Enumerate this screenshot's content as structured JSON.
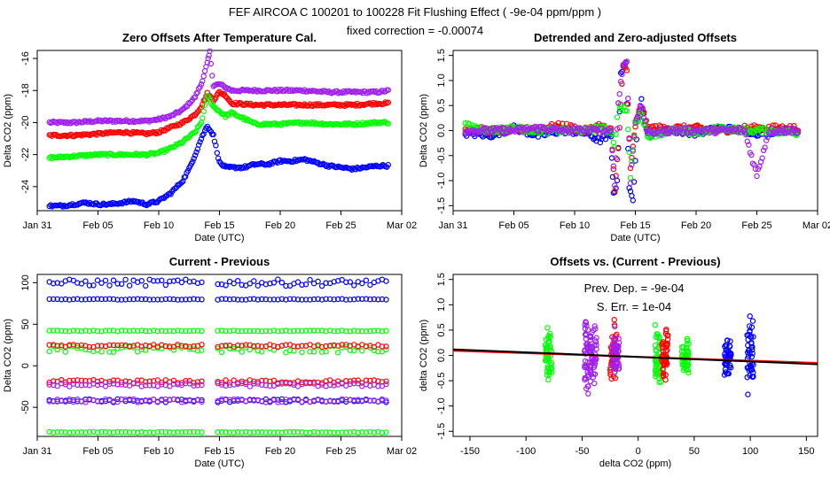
{
  "header": {
    "title": "FEF   AIRCOA C   100201 to 100228   Fit Flushing Effect ( -9e-04 ppm/ppm )",
    "subtitle": "fixed correction = -0.00074"
  },
  "colors": {
    "blue": "#0000ff",
    "red": "#ff0000",
    "green": "#00ff00",
    "purple": "#a020f0",
    "black": "#000000"
  },
  "chart_data": [
    {
      "id": "panel-zero-offsets",
      "type": "scatter",
      "title": "Zero Offsets After Temperature Cal.",
      "xlabel": "Date (UTC)",
      "ylabel": "Delta CO2 (ppm)",
      "xlim": [
        0,
        30
      ],
      "ylim": [
        -25.5,
        -15.5
      ],
      "xticks": [
        0,
        5,
        10,
        15,
        20,
        25,
        30
      ],
      "xticklabels": [
        "Jan 31",
        "Feb 05",
        "Feb 10",
        "Feb 15",
        "Feb 20",
        "Feb 25",
        "Mar 02"
      ],
      "yticks": [
        -24,
        -22,
        -20,
        -18,
        -16
      ],
      "yticklabels": [
        "-24",
        "-22",
        "-20",
        "-18",
        "-16"
      ],
      "series": [
        {
          "name": "purple",
          "color": "#a020f0",
          "x": [
            1,
            3,
            5,
            7,
            9,
            10,
            11,
            12,
            13,
            13.5,
            14,
            14.2,
            14.5,
            15,
            16,
            18,
            20,
            22,
            24,
            26,
            28,
            29
          ],
          "y": [
            -20,
            -20,
            -19.9,
            -19.9,
            -19.9,
            -19.8,
            -19.6,
            -19.2,
            -18.4,
            -17.6,
            -16.3,
            -15.6,
            -17.7,
            -17.6,
            -18.0,
            -18.0,
            -18.0,
            -18.0,
            -18.1,
            -18.1,
            -18.1,
            -18.0
          ]
        },
        {
          "name": "red",
          "color": "#ff0000",
          "x": [
            1,
            3,
            5,
            7,
            9,
            10,
            11,
            12,
            13,
            13.5,
            14,
            14.5,
            15,
            15.5,
            16,
            18,
            20,
            22,
            24,
            26,
            28,
            29
          ],
          "y": [
            -20.8,
            -20.8,
            -20.7,
            -20.6,
            -20.7,
            -20.6,
            -20.3,
            -20.0,
            -19.5,
            -19,
            -18.2,
            -18.6,
            -18.1,
            -18.3,
            -18.8,
            -18.9,
            -18.9,
            -18.9,
            -18.9,
            -18.9,
            -18.8,
            -18.8
          ]
        },
        {
          "name": "green",
          "color": "#00ff00",
          "x": [
            1,
            3,
            5,
            7,
            9,
            10,
            11,
            12,
            13,
            13.5,
            14,
            14.5,
            15,
            15.5,
            16,
            18,
            20,
            22,
            24,
            26,
            28,
            29
          ],
          "y": [
            -22.2,
            -22.1,
            -22.0,
            -22.0,
            -22.0,
            -21.9,
            -21.6,
            -21.2,
            -20.6,
            -20,
            -18.3,
            -19,
            -19.3,
            -19.6,
            -19.4,
            -20.1,
            -20.1,
            -20.0,
            -20.1,
            -20.1,
            -20.0,
            -20.0
          ]
        },
        {
          "name": "blue",
          "color": "#0000ff",
          "x": [
            1,
            2,
            3,
            4,
            5,
            6,
            7,
            8,
            9,
            10,
            11,
            12,
            12.5,
            13,
            13.5,
            14,
            14.5,
            15,
            15.5,
            16,
            17,
            18,
            19,
            20,
            21,
            22,
            23,
            24,
            25,
            26,
            27,
            28,
            29
          ],
          "y": [
            -25.2,
            -25.2,
            -25.1,
            -25.0,
            -25.1,
            -25.1,
            -25.0,
            -24.9,
            -25.1,
            -24.9,
            -24.4,
            -23.6,
            -22.9,
            -22.0,
            -21.0,
            -20.2,
            -20.8,
            -22.5,
            -22.8,
            -22.8,
            -22.8,
            -22.6,
            -22.6,
            -22.4,
            -22.4,
            -22.3,
            -22.5,
            -22.7,
            -22.8,
            -22.9,
            -22.8,
            -22.7,
            -22.7
          ]
        }
      ]
    },
    {
      "id": "panel-detrended",
      "type": "scatter",
      "title": "Detrended and Zero-adjusted Offsets",
      "xlabel": "Date (UTC)",
      "ylabel": "Delta CO2 (ppm)",
      "xlim": [
        0,
        30
      ],
      "ylim": [
        -1.6,
        1.6
      ],
      "xticks": [
        0,
        5,
        10,
        15,
        20,
        25,
        30
      ],
      "xticklabels": [
        "Jan 31",
        "Feb 05",
        "Feb 10",
        "Feb 15",
        "Feb 20",
        "Feb 25",
        "Mar 02"
      ],
      "yticks": [
        -1.5,
        -1.0,
        -0.5,
        0.0,
        0.5,
        1.0,
        1.5
      ],
      "yticklabels": [
        "-1.5",
        "-1.0",
        "-0.5",
        "0.0",
        "0.5",
        "1.0",
        "1.5"
      ],
      "series": [
        {
          "name": "blue",
          "color": "#0000ff",
          "x": [
            1,
            3,
            5,
            7,
            9,
            11,
            12,
            13,
            13.2,
            13.5,
            13.8,
            14.2,
            14.5,
            14.8,
            15.2,
            15.5,
            16,
            17,
            18,
            20,
            22,
            24,
            25,
            27,
            28.5
          ],
          "y": [
            -0.05,
            -0.1,
            0.05,
            -0.1,
            0,
            -0.05,
            -0.2,
            -0.1,
            -1.3,
            -1.0,
            1.1,
            1.4,
            -1.2,
            -1.4,
            0.3,
            0.6,
            -0.1,
            0,
            0,
            -0.05,
            0.05,
            0,
            -0.05,
            0,
            0
          ]
        },
        {
          "name": "red",
          "color": "#ff0000",
          "x": [
            1,
            3,
            5,
            7,
            9,
            11,
            12,
            13,
            13.3,
            13.6,
            14,
            14.3,
            14.6,
            15,
            15.5,
            16,
            18,
            20,
            22,
            24,
            26,
            28.5
          ],
          "y": [
            0.05,
            0,
            0,
            0.05,
            0.1,
            0,
            0.1,
            0,
            -1.2,
            -0.3,
            1.3,
            1.2,
            -0.8,
            0.1,
            0.5,
            0.05,
            0.05,
            0.05,
            0,
            0.05,
            0.05,
            0.05
          ]
        },
        {
          "name": "green",
          "color": "#00ff00",
          "x": [
            1,
            3,
            5,
            7,
            9,
            11,
            12,
            13,
            13.3,
            13.6,
            14.3,
            14.6,
            15,
            15.5,
            16,
            18,
            20,
            22,
            24,
            26,
            28.5
          ],
          "y": [
            0.1,
            0,
            0.05,
            0,
            0,
            0,
            0.05,
            0,
            -0.3,
            0.5,
            0.4,
            -0.9,
            0.15,
            0.35,
            -0.1,
            0,
            -0.05,
            0.05,
            0,
            0,
            -0.05
          ]
        },
        {
          "name": "purple",
          "color": "#a020f0",
          "x": [
            1,
            3,
            5,
            7,
            9,
            11,
            12,
            13,
            13.3,
            13.6,
            14,
            14.3,
            14.6,
            15,
            15.5,
            16,
            18,
            20,
            22,
            24,
            25,
            26,
            28.5
          ],
          "y": [
            0,
            0,
            0,
            0.05,
            0,
            0,
            0,
            0,
            -1.1,
            0.6,
            1.3,
            1.4,
            -1.0,
            0.2,
            0.5,
            -0.05,
            0,
            0,
            0,
            0,
            -0.9,
            0,
            0
          ]
        }
      ]
    },
    {
      "id": "panel-current-previous",
      "type": "scatter",
      "title": "Current - Previous",
      "xlabel": "Date (UTC)",
      "ylabel": "Delta CO2 (ppm)",
      "xlim": [
        0,
        30
      ],
      "ylim": [
        -85,
        110
      ],
      "xticks": [
        0,
        5,
        10,
        15,
        20,
        25,
        30
      ],
      "xticklabels": [
        "Jan 31",
        "Feb 05",
        "Feb 10",
        "Feb 15",
        "Feb 20",
        "Feb 25",
        "Mar 02"
      ],
      "yticks": [
        -50,
        0,
        50,
        100
      ],
      "yticklabels": [
        "-50",
        "0",
        "50",
        "100"
      ],
      "bands": [
        {
          "name": "blue-high",
          "color": "#0000ff",
          "level": 100,
          "spread": 4
        },
        {
          "name": "blue-mid",
          "color": "#0000ff",
          "level": 80,
          "spread": 0.5
        },
        {
          "name": "green-top",
          "color": "#00ff00",
          "level": 42,
          "spread": 0.5
        },
        {
          "name": "green-upper",
          "color": "#00ff00",
          "level": 20,
          "spread": 4
        },
        {
          "name": "red-upper",
          "color": "#ff0000",
          "level": 24,
          "spread": 1.5
        },
        {
          "name": "red-lower",
          "color": "#ff0000",
          "level": -19,
          "spread": 2
        },
        {
          "name": "purple-lower",
          "color": "#a020f0",
          "level": -23,
          "spread": 2
        },
        {
          "name": "blue-low",
          "color": "#0000ff",
          "level": -42,
          "spread": 2
        },
        {
          "name": "purple-low",
          "color": "#a020f0",
          "level": -42,
          "spread": 2
        },
        {
          "name": "green-bottom",
          "color": "#00ff00",
          "level": -80,
          "spread": 0.5
        }
      ]
    },
    {
      "id": "panel-offsets-vs-diff",
      "type": "scatter",
      "title": "Offsets vs. (Current - Previous)",
      "xlabel": "delta CO2 (ppm)",
      "ylabel": "delta CO2 (ppm)",
      "xlim": [
        -165,
        160
      ],
      "ylim": [
        -1.6,
        1.6
      ],
      "xticks": [
        -150,
        -100,
        -50,
        0,
        50,
        100,
        150
      ],
      "xticklabels": [
        "-150",
        "-100",
        "-50",
        "0",
        "50",
        "100",
        "150"
      ],
      "yticks": [
        -1.5,
        -1.0,
        -0.5,
        0.0,
        0.5,
        1.0,
        1.5
      ],
      "yticklabels": [
        "-1.5",
        "-1.0",
        "-0.5",
        "0.0",
        "0.5",
        "1.0",
        "1.5"
      ],
      "fit_line": {
        "slope": -0.0009,
        "intercept": -0.03,
        "color": "#000000"
      },
      "ref_line": {
        "slope": -0.00074,
        "intercept": -0.03,
        "color": "#ff0000"
      },
      "annotations": [
        "Prev. Dep. =  -9e-04",
        "S. Err. =  1e-04"
      ],
      "clusters": [
        {
          "name": "green",
          "color": "#00ff00",
          "x": -80,
          "spread_y": 0.6
        },
        {
          "name": "purple",
          "color": "#a020f0",
          "x": -45,
          "spread_y": 0.9
        },
        {
          "name": "purple",
          "color": "#a020f0",
          "x": -40,
          "spread_y": 0.6
        },
        {
          "name": "red",
          "color": "#ff0000",
          "x": -22,
          "spread_y": 0.6
        },
        {
          "name": "purple",
          "color": "#a020f0",
          "x": -20,
          "spread_y": 0.5
        },
        {
          "name": "green",
          "color": "#00ff00",
          "x": 18,
          "spread_y": 0.6
        },
        {
          "name": "red",
          "color": "#ff0000",
          "x": 24,
          "spread_y": 0.5
        },
        {
          "name": "green",
          "color": "#00ff00",
          "x": 42,
          "spread_y": 0.4
        },
        {
          "name": "blue",
          "color": "#0000ff",
          "x": 80,
          "spread_y": 0.5
        },
        {
          "name": "blue",
          "color": "#0000ff",
          "x": 100,
          "spread_y": 0.8
        }
      ]
    }
  ]
}
